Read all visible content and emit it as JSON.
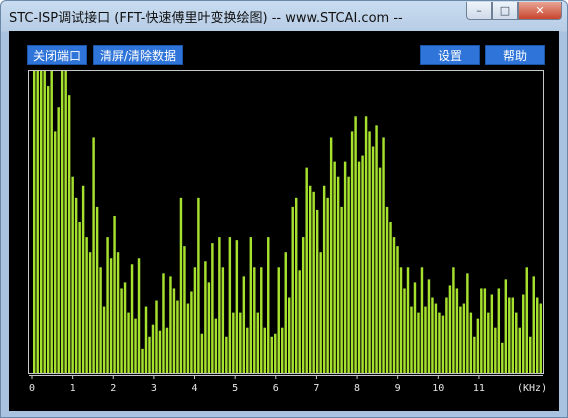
{
  "window": {
    "title": "STC-ISP调试接口 (FFT-快速傅里叶变换绘图) -- www.STCAI.com --",
    "minimize_icon": "minimize-icon",
    "maximize_icon": "maximize-icon",
    "close_icon": "close-icon"
  },
  "toolbar": {
    "close_port_label": "关闭端口",
    "clear_label": "清屏/清除数据",
    "settings_label": "设置",
    "help_label": "帮助"
  },
  "colors": {
    "bar": "#a6e12e",
    "peak": "#d8d8d8",
    "axis": "#c8c8c8",
    "background": "#000000",
    "button": "#2f74d8"
  },
  "chart_data": {
    "type": "bar",
    "xlabel": "(KHz)",
    "x_ticks": [
      "0",
      "1",
      "2",
      "3",
      "4",
      "5",
      "6",
      "7",
      "8",
      "9",
      "10",
      "11"
    ],
    "xlim": [
      0,
      12.6
    ],
    "ylim": [
      0,
      100
    ],
    "grid": false,
    "series": [
      {
        "values": [
          100,
          100,
          100,
          100,
          95,
          100,
          80,
          88,
          100,
          100,
          92,
          65,
          58,
          50,
          62,
          45,
          40,
          78,
          55,
          35,
          22,
          45,
          38,
          52,
          40,
          28,
          30,
          20,
          36,
          18,
          38,
          8,
          22,
          12,
          16,
          24,
          14,
          33,
          15,
          32,
          28,
          24,
          58,
          42,
          23,
          27,
          35,
          58,
          13,
          37,
          30,
          43,
          18,
          45,
          35,
          12,
          45,
          20,
          44,
          20,
          32,
          15,
          45,
          35,
          20,
          35,
          15,
          45,
          12,
          13,
          35,
          15,
          40,
          25,
          55,
          58,
          34,
          45,
          68,
          62,
          60,
          54,
          40,
          62,
          58,
          78,
          70,
          65,
          55,
          70,
          65,
          80,
          85,
          70,
          72,
          85,
          80,
          75,
          82,
          68,
          78,
          55,
          50,
          45,
          42,
          35,
          28,
          35,
          22,
          30,
          20,
          35,
          22,
          31,
          25,
          23,
          20,
          19,
          25,
          29,
          35,
          28,
          22,
          23,
          33,
          20,
          12,
          18,
          28,
          28,
          20,
          26,
          15,
          28,
          10,
          31,
          25,
          25,
          20,
          15,
          26,
          35,
          12,
          32,
          25,
          23
        ]
      },
      {
        "peaks": [
          null,
          null,
          null,
          null,
          null,
          null,
          null,
          95,
          null,
          null,
          null,
          null,
          null,
          null,
          null,
          null,
          null,
          null,
          null,
          null,
          null,
          null,
          null,
          null,
          null,
          null,
          null,
          null,
          null,
          null,
          null,
          null,
          null,
          null,
          null,
          null,
          null,
          null,
          null,
          null,
          null,
          null,
          null,
          null,
          null,
          null,
          null,
          null,
          null,
          null,
          null,
          null,
          null,
          null,
          null,
          null,
          null,
          null,
          null,
          null,
          null,
          null,
          null,
          null,
          null,
          null,
          null,
          null,
          null,
          null,
          null,
          null,
          null,
          null,
          null,
          null,
          null,
          null,
          null,
          null,
          null,
          null,
          null,
          null,
          null,
          null,
          null,
          null,
          null,
          null,
          null,
          null,
          null,
          null,
          null,
          null,
          null,
          null,
          null,
          null,
          null,
          null,
          null,
          null,
          null,
          null,
          null,
          null,
          null,
          null,
          null,
          null,
          null,
          null,
          null,
          null,
          null,
          null,
          null,
          null,
          null,
          null,
          null,
          null,
          null,
          null,
          null,
          null,
          null,
          null,
          null,
          null,
          null,
          null,
          null,
          null,
          null,
          null,
          null,
          null,
          null,
          null,
          null,
          null,
          null,
          null
        ]
      }
    ]
  }
}
